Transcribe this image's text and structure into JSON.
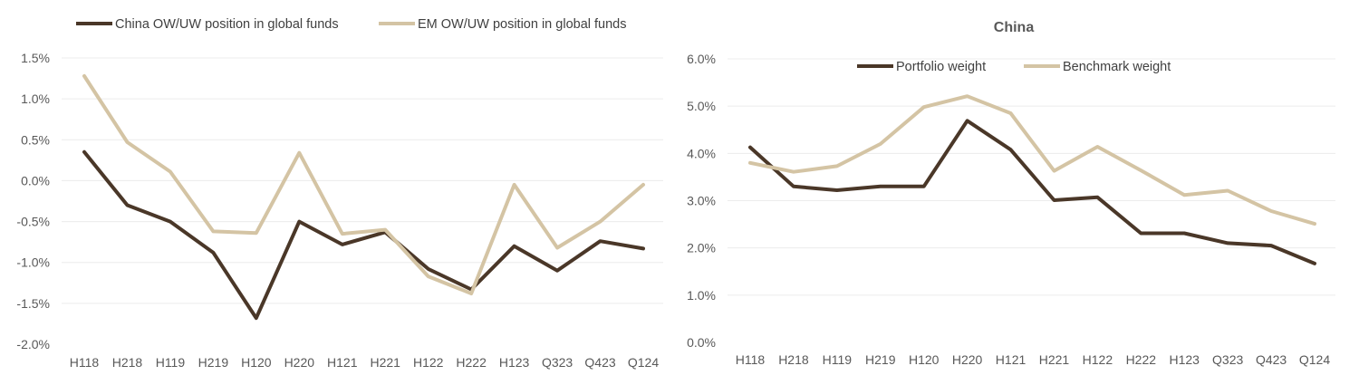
{
  "colors": {
    "dark": "#4a3728",
    "light": "#d4c4a4"
  },
  "chart_data": [
    {
      "type": "line",
      "title": "",
      "xlabel": "",
      "ylabel": "",
      "ylim": [
        -0.02,
        0.015
      ],
      "yticks": [
        "1.5%",
        "1.0%",
        "0.5%",
        "0.0%",
        "-0.5%",
        "-1.0%",
        "-1.5%",
        "-2.0%"
      ],
      "grid": true,
      "legend": "top",
      "categories": [
        "H118",
        "H218",
        "H119",
        "H219",
        "H120",
        "H220",
        "H121",
        "H221",
        "H122",
        "H222",
        "H123",
        "Q323",
        "Q423",
        "Q124"
      ],
      "series": [
        {
          "name": "China OW/UW position in global funds",
          "color": "#4a3728",
          "values": [
            0.0035,
            -0.003,
            -0.005,
            -0.0088,
            -0.0168,
            -0.005,
            -0.0078,
            -0.0063,
            -0.0108,
            -0.0133,
            -0.008,
            -0.011,
            -0.0074,
            -0.0083
          ]
        },
        {
          "name": "EM OW/UW position in global funds",
          "color": "#d4c4a4",
          "values": [
            0.0128,
            0.0047,
            0.0011,
            -0.0062,
            -0.0064,
            0.0034,
            -0.0065,
            -0.006,
            -0.0117,
            -0.0138,
            -0.0005,
            -0.0082,
            -0.005,
            -0.0005
          ]
        }
      ]
    },
    {
      "type": "line",
      "title": "China",
      "xlabel": "",
      "ylabel": "",
      "ylim": [
        0,
        0.06
      ],
      "yticks": [
        "6.0%",
        "5.0%",
        "4.0%",
        "3.0%",
        "2.0%",
        "1.0%",
        "0.0%"
      ],
      "grid": true,
      "legend": "top",
      "categories": [
        "H118",
        "H218",
        "H119",
        "H219",
        "H120",
        "H220",
        "H121",
        "H221",
        "H122",
        "H222",
        "H123",
        "Q323",
        "Q423",
        "Q124"
      ],
      "series": [
        {
          "name": "Portfolio weight",
          "color": "#4a3728",
          "values": [
            0.0413,
            0.033,
            0.0322,
            0.033,
            0.033,
            0.0469,
            0.0408,
            0.0301,
            0.0307,
            0.0231,
            0.0231,
            0.021,
            0.0205,
            0.0167
          ]
        },
        {
          "name": "Benchmark weight",
          "color": "#d4c4a4",
          "values": [
            0.038,
            0.0361,
            0.0373,
            0.042,
            0.0498,
            0.0521,
            0.0485,
            0.0363,
            0.0414,
            0.0364,
            0.0312,
            0.0321,
            0.0278,
            0.0251
          ]
        }
      ]
    }
  ]
}
